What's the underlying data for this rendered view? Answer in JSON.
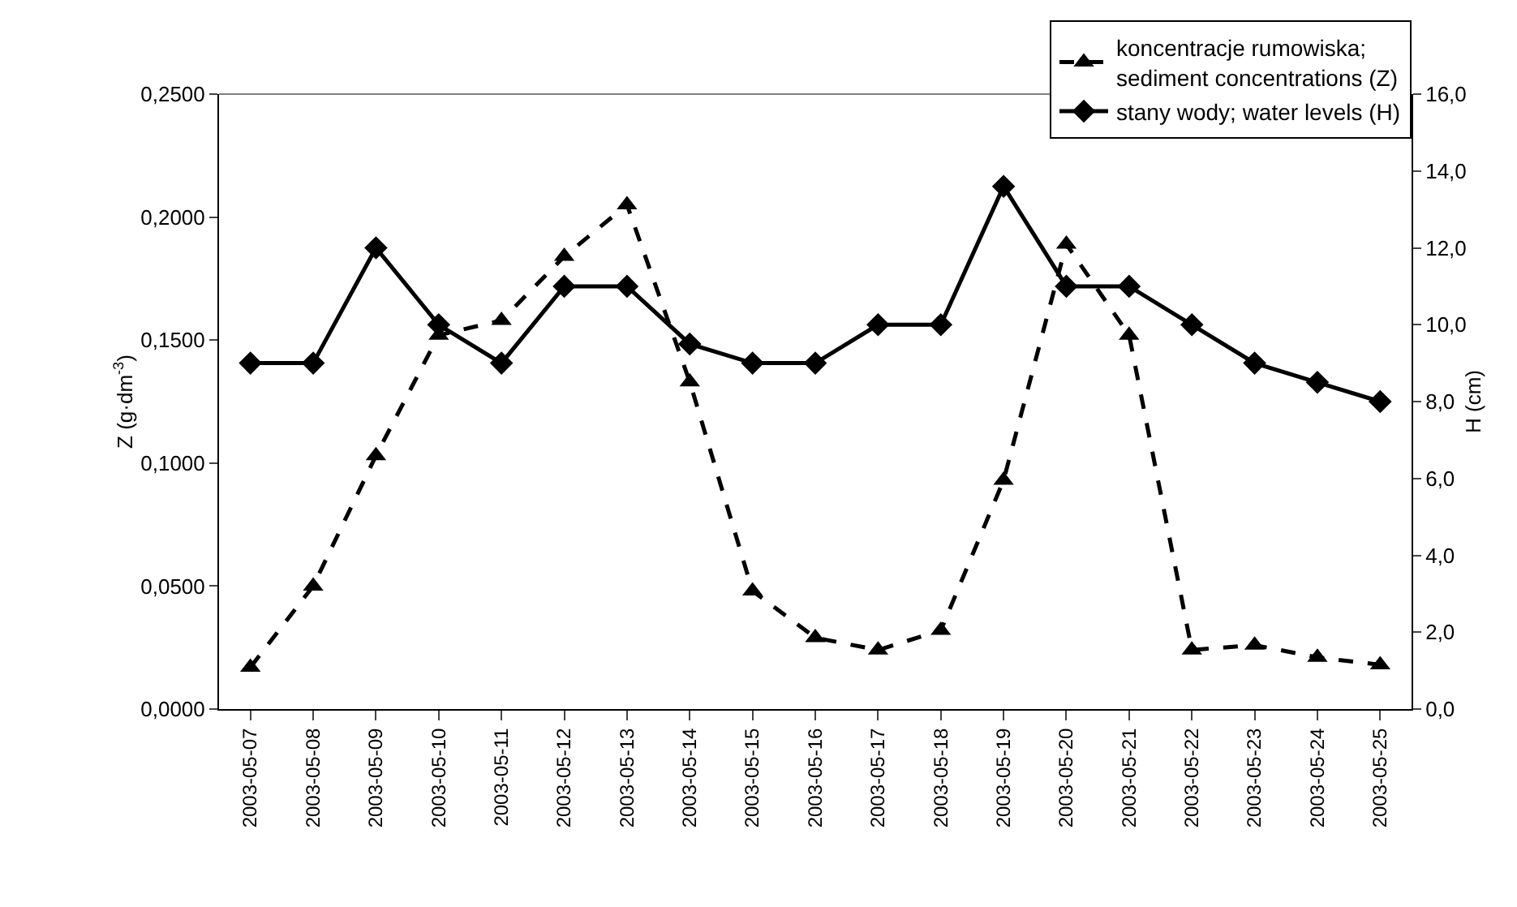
{
  "chart_data": {
    "type": "line",
    "categories": [
      "2003-05-07",
      "2003-05-08",
      "2003-05-09",
      "2003-05-10",
      "2003-05-11",
      "2003-05-12",
      "2003-05-13",
      "2003-05-14",
      "2003-05-15",
      "2003-05-16",
      "2003-05-17",
      "2003-05-18",
      "2003-05-19",
      "2003-05-20",
      "2003-05-21",
      "2003-05-22",
      "2003-05-23",
      "2003-05-24",
      "2003-05-25"
    ],
    "series": [
      {
        "name": "koncentracje rumowiska;\nsediment concentrations (Z)",
        "color": "#000000",
        "marker": "triangle",
        "line_style": "dashed",
        "values": [
          0.017,
          0.05,
          0.103,
          0.152,
          0.158,
          0.184,
          0.205,
          0.133,
          0.048,
          0.029,
          0.024,
          0.032,
          0.093,
          0.189,
          0.152,
          0.024,
          0.026,
          0.021,
          0.018
        ]
      },
      {
        "name": "stany wody; water levels (H)",
        "color": "#000000",
        "marker": "diamond",
        "line_style": "solid",
        "axis": "y2",
        "values": [
          9,
          9,
          12,
          10,
          9,
          11,
          11,
          9.5,
          9,
          9,
          10,
          10,
          13.6,
          11,
          11,
          10,
          9,
          8.5,
          8
        ]
      }
    ],
    "ylabel": "Z (g·dm$^{-3}$)",
    "y2label": "H (cm)",
    "ylim": [
      0,
      0.25
    ],
    "yticks": [
      {
        "value": 0,
        "label": "0,0000"
      },
      {
        "value": 0.05,
        "label": "0,0500"
      },
      {
        "value": 0.1,
        "label": "0,1000"
      },
      {
        "value": 0.15,
        "label": "0,1500"
      },
      {
        "value": 0.2,
        "label": "0,2000"
      },
      {
        "value": 0.25,
        "label": "0,2500"
      }
    ],
    "y2lim": [
      0,
      16
    ],
    "y2ticks": [
      {
        "value": 0,
        "label": "0,0"
      },
      {
        "value": 2,
        "label": "2,0"
      },
      {
        "value": 4,
        "label": "4,0"
      },
      {
        "value": 6,
        "label": "6,0"
      },
      {
        "value": 8,
        "label": "8,0"
      },
      {
        "value": 10,
        "label": "10,0"
      },
      {
        "value": 12,
        "label": "12,0"
      },
      {
        "value": 14,
        "label": "14,0"
      },
      {
        "value": 16,
        "label": "16,0"
      }
    ],
    "legend": "top right",
    "grid": false
  }
}
